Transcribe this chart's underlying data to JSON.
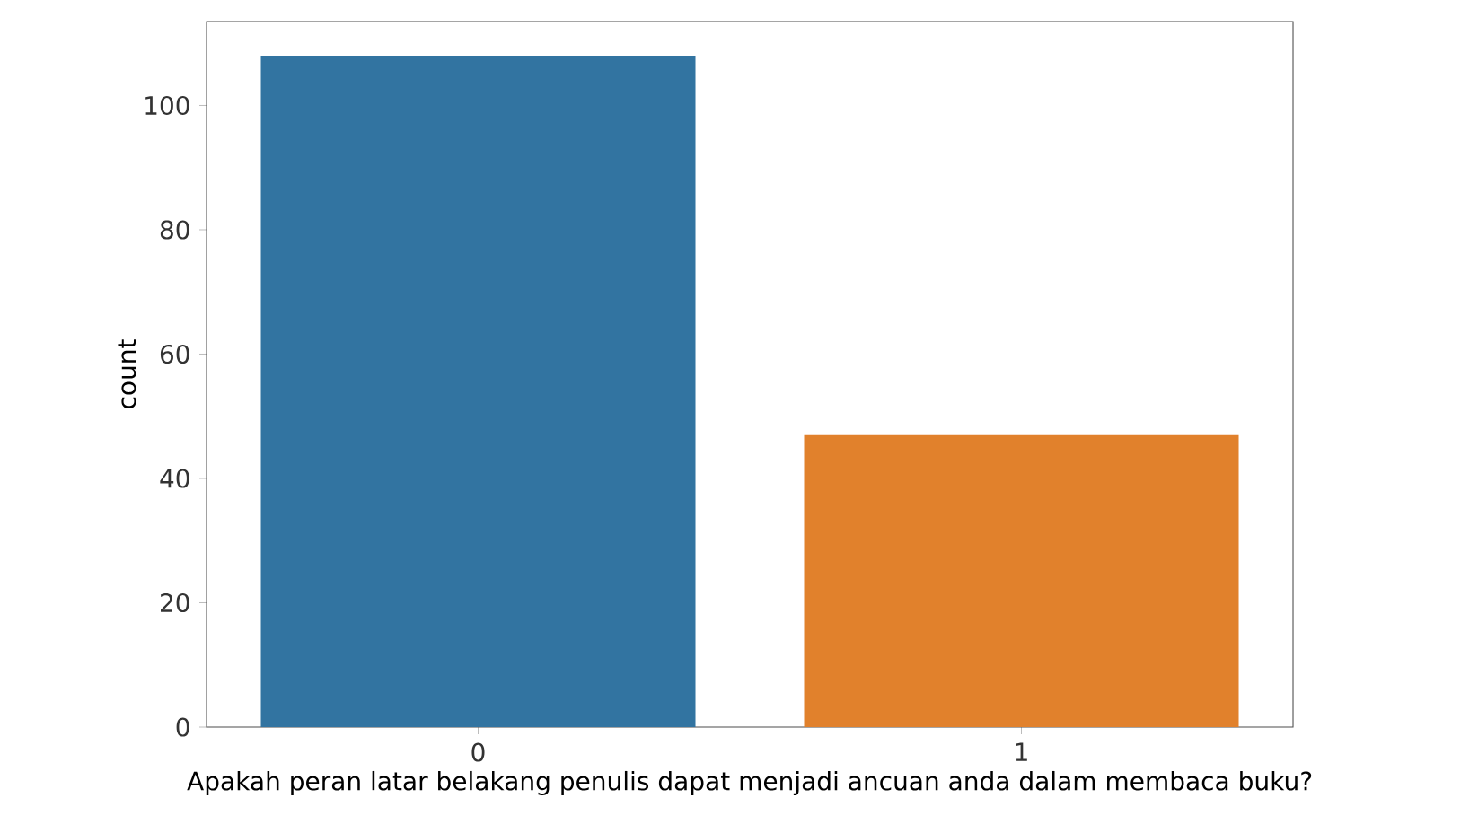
{
  "chart_data": {
    "type": "bar",
    "xlabel": "Apakah peran latar belakang penulis dapat menjadi ancuan anda dalam membaca buku?",
    "ylabel": "count",
    "categories": [
      "0",
      "1"
    ],
    "values": [
      108,
      47
    ],
    "colors": [
      "#3274a1",
      "#e1812c"
    ],
    "ylim": [
      0,
      113.5
    ],
    "yticks": [
      0,
      20,
      40,
      60,
      80,
      100
    ]
  }
}
